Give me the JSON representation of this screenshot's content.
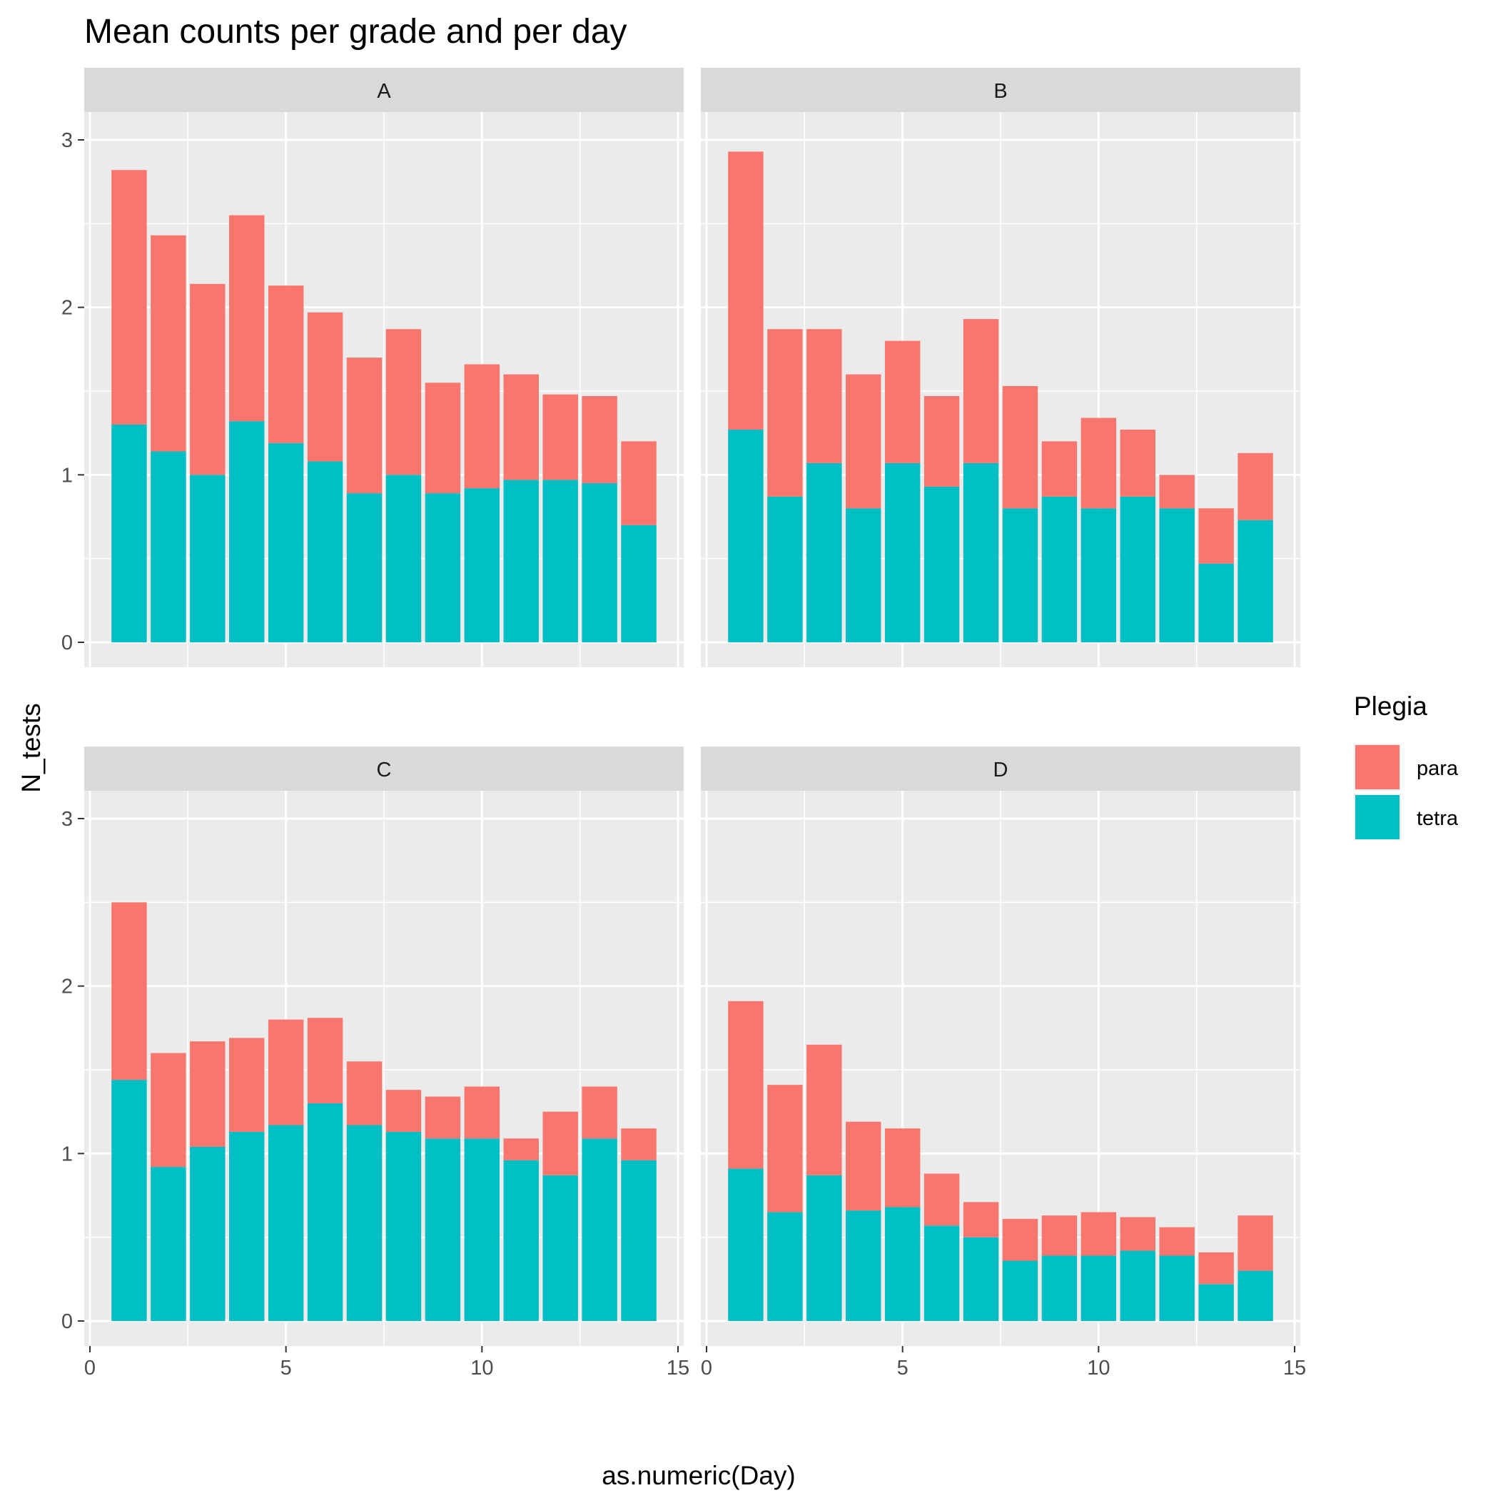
{
  "chart_data": {
    "type": "bar",
    "stacked": true,
    "title": "Mean counts per grade and per day",
    "xlabel": "as.numeric(Day)",
    "ylabel": "N_tests",
    "xlim": [
      0,
      15
    ],
    "ylim": [
      0,
      3
    ],
    "x_ticks": [
      "0",
      "5",
      "10",
      "15"
    ],
    "y_ticks": [
      "0",
      "1",
      "2",
      "3"
    ],
    "grid": true,
    "legend": {
      "title": "Plegia",
      "position": "right",
      "entries": [
        {
          "name": "para",
          "color": "#F8766D"
        },
        {
          "name": "tetra",
          "color": "#00BFC4"
        }
      ]
    },
    "x": [
      1,
      2,
      3,
      4,
      5,
      6,
      7,
      8,
      9,
      10,
      11,
      12,
      13,
      14
    ],
    "panels": [
      {
        "label": "A",
        "series": [
          {
            "name": "tetra",
            "values": [
              1.3,
              1.14,
              1.0,
              1.32,
              1.19,
              1.08,
              0.89,
              1.0,
              0.89,
              0.92,
              0.97,
              0.97,
              0.95,
              0.7
            ]
          },
          {
            "name": "para",
            "values": [
              1.52,
              1.29,
              1.14,
              1.23,
              0.94,
              0.89,
              0.81,
              0.87,
              0.66,
              0.74,
              0.63,
              0.51,
              0.52,
              0.5
            ]
          }
        ]
      },
      {
        "label": "B",
        "series": [
          {
            "name": "tetra",
            "values": [
              1.27,
              0.87,
              1.07,
              0.8,
              1.07,
              0.93,
              1.07,
              0.8,
              0.87,
              0.8,
              0.87,
              0.8,
              0.47,
              0.73
            ]
          },
          {
            "name": "para",
            "values": [
              1.66,
              1.0,
              0.8,
              0.8,
              0.73,
              0.54,
              0.86,
              0.73,
              0.33,
              0.54,
              0.4,
              0.2,
              0.33,
              0.4
            ]
          }
        ]
      },
      {
        "label": "C",
        "series": [
          {
            "name": "tetra",
            "values": [
              1.44,
              0.92,
              1.04,
              1.13,
              1.17,
              1.3,
              1.17,
              1.13,
              1.09,
              1.09,
              0.96,
              0.87,
              1.09,
              0.96
            ]
          },
          {
            "name": "para",
            "values": [
              1.06,
              0.68,
              0.63,
              0.56,
              0.63,
              0.51,
              0.38,
              0.25,
              0.25,
              0.31,
              0.13,
              0.38,
              0.31,
              0.19
            ]
          }
        ]
      },
      {
        "label": "D",
        "series": [
          {
            "name": "tetra",
            "values": [
              0.91,
              0.65,
              0.87,
              0.66,
              0.68,
              0.57,
              0.5,
              0.36,
              0.39,
              0.39,
              0.42,
              0.39,
              0.22,
              0.3
            ]
          },
          {
            "name": "para",
            "values": [
              1.0,
              0.76,
              0.78,
              0.53,
              0.47,
              0.31,
              0.21,
              0.25,
              0.24,
              0.26,
              0.2,
              0.17,
              0.19,
              0.33
            ]
          }
        ]
      }
    ]
  }
}
